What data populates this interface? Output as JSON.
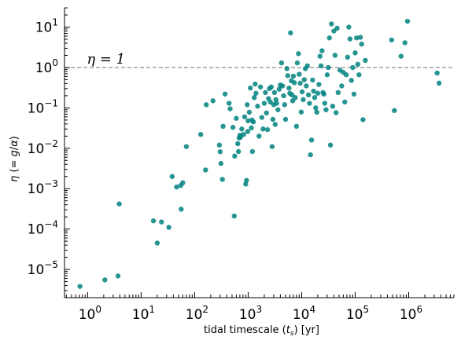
{
  "chart_data": {
    "type": "scatter",
    "xlabel": "tidal timescale ($t_s$) [yr]",
    "xlabel_parts": {
      "pre": "tidal timescale (",
      "var": "t",
      "sub": "s",
      "post": ") [yr]"
    },
    "ylabel": "$\\eta$ ($=g/\\alpha$)",
    "ylabel_parts": {
      "eta": "η",
      "mid": " (= ",
      "g": "g",
      "slash": "/",
      "alpha": "α",
      "end": ")"
    },
    "x_scale": "log",
    "y_scale": "log",
    "xlim": [
      0.37,
      7000000
    ],
    "ylim": [
      2e-06,
      30
    ],
    "x_ticks": [
      1,
      10,
      100,
      1000,
      10000,
      100000,
      1000000
    ],
    "y_ticks": [
      1e-05,
      0.0001,
      0.001,
      0.01,
      0.1,
      1,
      10
    ],
    "x_tick_labels": [
      {
        "base": "10",
        "exp": "0"
      },
      {
        "base": "10",
        "exp": "1"
      },
      {
        "base": "10",
        "exp": "2"
      },
      {
        "base": "10",
        "exp": "3"
      },
      {
        "base": "10",
        "exp": "4"
      },
      {
        "base": "10",
        "exp": "5"
      },
      {
        "base": "10",
        "exp": "6"
      }
    ],
    "y_tick_labels": [
      {
        "base": "10",
        "exp": "−5"
      },
      {
        "base": "10",
        "exp": "−4"
      },
      {
        "base": "10",
        "exp": "−3"
      },
      {
        "base": "10",
        "exp": "−2"
      },
      {
        "base": "10",
        "exp": "−1"
      },
      {
        "base": "10",
        "exp": "0"
      },
      {
        "base": "10",
        "exp": "1"
      }
    ],
    "reference_line": {
      "y": 1,
      "style": "dashed",
      "color": "#808080"
    },
    "annotation": {
      "text": "η = 1",
      "x": 1,
      "y": 1.1
    },
    "marker_color": "#00827f",
    "grid": false,
    "points": [
      [
        0.72,
        3.8e-06
      ],
      [
        2.1,
        5.5e-06
      ],
      [
        3.7,
        6.9e-06
      ],
      [
        3.9,
        0.00042
      ],
      [
        17,
        0.00016
      ],
      [
        20,
        4.5e-05
      ],
      [
        24,
        0.00015
      ],
      [
        33,
        0.00011
      ],
      [
        38,
        0.002
      ],
      [
        46,
        0.0011
      ],
      [
        55,
        0.0012
      ],
      [
        56,
        0.00031
      ],
      [
        60,
        0.0014
      ],
      [
        70,
        0.011
      ],
      [
        130,
        0.022
      ],
      [
        160,
        0.0029
      ],
      [
        165,
        0.12
      ],
      [
        220,
        0.15
      ],
      [
        290,
        0.012
      ],
      [
        300,
        0.0082
      ],
      [
        310,
        0.0042
      ],
      [
        330,
        0.0017
      ],
      [
        340,
        0.035
      ],
      [
        370,
        0.22
      ],
      [
        440,
        0.13
      ],
      [
        460,
        0.095
      ],
      [
        520,
        0.033
      ],
      [
        550,
        0.00021
      ],
      [
        560,
        0.0064
      ],
      [
        600,
        0.055
      ],
      [
        640,
        0.013
      ],
      [
        660,
        0.0083
      ],
      [
        680,
        0.018
      ],
      [
        700,
        0.021
      ],
      [
        720,
        0.019
      ],
      [
        760,
        0.03
      ],
      [
        820,
        0.022
      ],
      [
        860,
        0.06
      ],
      [
        900,
        0.0013
      ],
      [
        930,
        0.0016
      ],
      [
        960,
        0.12
      ],
      [
        980,
        0.026
      ],
      [
        1000,
        0.048
      ],
      [
        1050,
        0.078
      ],
      [
        1100,
        0.31
      ],
      [
        1150,
        0.032
      ],
      [
        1180,
        0.05
      ],
      [
        1200,
        0.0083
      ],
      [
        1250,
        0.045
      ],
      [
        1300,
        0.18
      ],
      [
        1350,
        0.39
      ],
      [
        1400,
        0.23
      ],
      [
        1500,
        0.11
      ],
      [
        1600,
        0.02
      ],
      [
        1700,
        0.33
      ],
      [
        1800,
        0.058
      ],
      [
        1900,
        0.03
      ],
      [
        2000,
        0.13
      ],
      [
        2100,
        0.24
      ],
      [
        2200,
        0.075
      ],
      [
        2300,
        0.029
      ],
      [
        2400,
        0.17
      ],
      [
        2500,
        0.3
      ],
      [
        2600,
        0.14
      ],
      [
        2700,
        0.33
      ],
      [
        2800,
        0.011
      ],
      [
        2900,
        0.052
      ],
      [
        3000,
        0.12
      ],
      [
        3100,
        0.24
      ],
      [
        3200,
        0.039
      ],
      [
        3300,
        0.16
      ],
      [
        3400,
        0.13
      ],
      [
        3600,
        0.09
      ],
      [
        3800,
        0.29
      ],
      [
        4000,
        0.37
      ],
      [
        4200,
        1.3
      ],
      [
        4400,
        0.35
      ],
      [
        4600,
        0.2
      ],
      [
        4800,
        0.12
      ],
      [
        5000,
        0.052
      ],
      [
        5300,
        0.94
      ],
      [
        5500,
        0.63
      ],
      [
        5800,
        0.31
      ],
      [
        6000,
        0.23
      ],
      [
        6200,
        7.2
      ],
      [
        6400,
        0.47
      ],
      [
        6600,
        0.21
      ],
      [
        6800,
        0.15
      ],
      [
        7000,
        0.61
      ],
      [
        7300,
        0.42
      ],
      [
        7600,
        0.18
      ],
      [
        8000,
        0.035
      ],
      [
        8300,
        1.3
      ],
      [
        8700,
        2.2
      ],
      [
        9000,
        0.68
      ],
      [
        9400,
        0.41
      ],
      [
        9800,
        0.079
      ],
      [
        10200,
        0.25
      ],
      [
        10700,
        0.16
      ],
      [
        11200,
        0.5
      ],
      [
        11700,
        0.94
      ],
      [
        12200,
        0.35
      ],
      [
        12800,
        1.1
      ],
      [
        13400,
        0.21
      ],
      [
        14000,
        0.13
      ],
      [
        14600,
        0.0069
      ],
      [
        15300,
        0.016
      ],
      [
        16000,
        0.49
      ],
      [
        16700,
        0.26
      ],
      [
        17500,
        0.18
      ],
      [
        18300,
        0.1
      ],
      [
        19200,
        0.078
      ],
      [
        20000,
        0.23
      ],
      [
        21000,
        0.38
      ],
      [
        22000,
        1.9
      ],
      [
        23000,
        1.1
      ],
      [
        24000,
        2.6
      ],
      [
        25000,
        0.24
      ],
      [
        26000,
        0.22
      ],
      [
        27000,
        0.13
      ],
      [
        28500,
        0.09
      ],
      [
        30000,
        0.66
      ],
      [
        31500,
        1.0
      ],
      [
        33000,
        5.4
      ],
      [
        34500,
        0.012
      ],
      [
        36000,
        12.0
      ],
      [
        38000,
        0.11
      ],
      [
        40000,
        8.0
      ],
      [
        42000,
        2.0
      ],
      [
        44000,
        0.076
      ],
      [
        46000,
        9.4
      ],
      [
        48000,
        0.24
      ],
      [
        52000,
        0.86
      ],
      [
        56000,
        0.35
      ],
      [
        60000,
        0.76
      ],
      [
        64000,
        0.14
      ],
      [
        68000,
        0.66
      ],
      [
        72000,
        1.8
      ],
      [
        76000,
        10.0
      ],
      [
        80000,
        5.1
      ],
      [
        85000,
        0.48
      ],
      [
        90000,
        1.0
      ],
      [
        95000,
        0.22
      ],
      [
        100000,
        2.3
      ],
      [
        106000,
        5.4
      ],
      [
        112000,
        1.2
      ],
      [
        118000,
        0.66
      ],
      [
        125000,
        5.6
      ],
      [
        132000,
        3.8
      ],
      [
        140000,
        0.051
      ],
      [
        155000,
        1.5
      ],
      [
        480000,
        4.8
      ],
      [
        540000,
        0.086
      ],
      [
        720000,
        1.9
      ],
      [
        850000,
        4.1
      ],
      [
        950000,
        14.0
      ],
      [
        3400000,
        0.73
      ],
      [
        3700000,
        0.41
      ]
    ]
  }
}
